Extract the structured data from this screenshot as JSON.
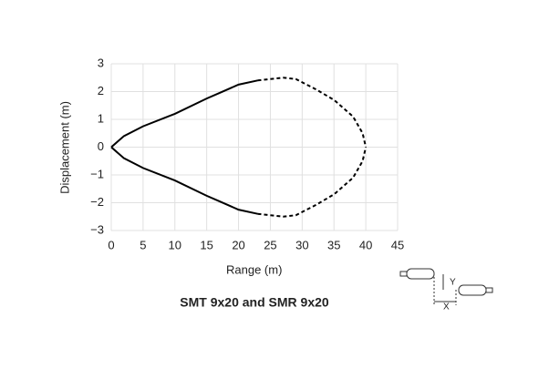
{
  "chart_data": {
    "type": "line",
    "xlabel": "Range (m)",
    "ylabel": "Displacement (m)",
    "caption": "SMT 9x20 and SMR 9x20",
    "series": [
      {
        "color": "#000000",
        "style": "solid",
        "x": [
          0,
          1,
          2,
          5,
          10,
          15,
          17,
          20,
          23
        ],
        "values": [
          0,
          0.2,
          0.4,
          0.75,
          1.2,
          1.75,
          1.95,
          2.25,
          2.4
        ]
      },
      {
        "color": "#000000",
        "style": "dashed",
        "x": [
          23,
          25,
          27,
          29,
          32,
          35,
          38,
          39.5,
          40
        ],
        "values": [
          2.4,
          2.45,
          2.5,
          2.45,
          2.1,
          1.7,
          1.1,
          0.5,
          0
        ]
      },
      {
        "color": "#000000",
        "style": "solid",
        "x": [
          0,
          1,
          2,
          5,
          10,
          15,
          17,
          20,
          23
        ],
        "values": [
          0,
          -0.2,
          -0.4,
          -0.75,
          -1.2,
          -1.75,
          -1.95,
          -2.25,
          -2.4
        ]
      },
      {
        "color": "#000000",
        "style": "dashed",
        "x": [
          23,
          25,
          27,
          29,
          32,
          35,
          38,
          39.5,
          40
        ],
        "values": [
          -2.4,
          -2.45,
          -2.5,
          -2.45,
          -2.1,
          -1.7,
          -1.1,
          -0.5,
          0
        ]
      }
    ],
    "xlim": [
      0,
      45
    ],
    "xticks": [
      0,
      5,
      10,
      15,
      20,
      25,
      30,
      35,
      40,
      45
    ],
    "ylim": [
      -3,
      3
    ],
    "yticks": [
      {
        "value": -3,
        "label": "−3"
      },
      {
        "value": -2,
        "label": "−2"
      },
      {
        "value": -1,
        "label": "−1"
      },
      0,
      1,
      2,
      3
    ],
    "grid": true,
    "diagram": {
      "y_label": "Y",
      "x_label": "X"
    }
  }
}
